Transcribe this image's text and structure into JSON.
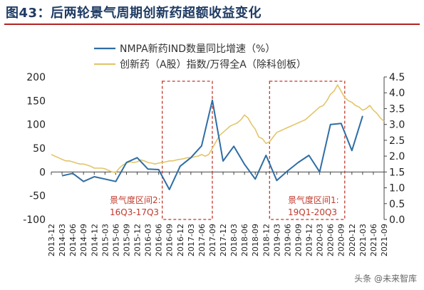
{
  "title": "图43：后两轮景气周期创新药超额收益变化",
  "watermark": "头条 @未来智库",
  "chart_data": {
    "type": "line",
    "legend_position": "top",
    "grid": false,
    "colors": {
      "nmpa": "#2e6da4",
      "index": "#e2c56a",
      "box": "#c0392b",
      "annotation": "#c0392b"
    },
    "x_tick_labels": [
      "2013-12",
      "2014-03",
      "2014-06",
      "2014-09",
      "2014-12",
      "2015-03",
      "2015-06",
      "2015-09",
      "2015-12",
      "2016-03",
      "2016-06",
      "2016-09",
      "2016-12",
      "2017-03",
      "2017-06",
      "2017-09",
      "2017-12",
      "2018-03",
      "2018-06",
      "2018-09",
      "2018-12",
      "2019-03",
      "2019-06",
      "2019-09",
      "2019-12",
      "2020-03",
      "2020-06",
      "2020-09",
      "2020-12",
      "2021-03",
      "2021-06",
      "2021-09"
    ],
    "y_left": {
      "min": -100,
      "max": 200,
      "ticks": [
        -100,
        -50,
        0,
        50,
        100,
        150,
        200
      ]
    },
    "y_right": {
      "min": 0.0,
      "max": 4.5,
      "ticks": [
        "0.0",
        "0.5",
        "1.0",
        "1.5",
        "2.0",
        "2.5",
        "3.0",
        "3.5",
        "4.0",
        "4.5"
      ]
    },
    "series": [
      {
        "name": "NMPA新药IND数量同比增速（%）",
        "axis": "left",
        "x": [
          "2014-03",
          "2014-06",
          "2014-09",
          "2014-12",
          "2015-03",
          "2015-06",
          "2015-09",
          "2015-12",
          "2016-03",
          "2016-06",
          "2016-09",
          "2016-12",
          "2017-03",
          "2017-06",
          "2017-09",
          "2017-12",
          "2018-03",
          "2018-06",
          "2018-09",
          "2018-12",
          "2019-03",
          "2019-06",
          "2019-09",
          "2019-12",
          "2020-03",
          "2020-06",
          "2020-09",
          "2020-12",
          "2021-03"
        ],
        "values": [
          -8,
          -3,
          -20,
          -10,
          -15,
          -20,
          20,
          30,
          6,
          5,
          -37,
          12,
          30,
          55,
          151,
          23,
          54,
          16,
          -15,
          35,
          -18,
          2,
          20,
          35,
          0,
          100,
          102,
          45,
          118
        ]
      },
      {
        "name": "创新药（A股）指数/万得全A（除科创板）",
        "axis": "right",
        "x": [
          "2013-12",
          "2014-01",
          "2014-02",
          "2014-03",
          "2014-04",
          "2014-05",
          "2014-06",
          "2014-07",
          "2014-08",
          "2014-09",
          "2014-10",
          "2014-11",
          "2014-12",
          "2015-01",
          "2015-02",
          "2015-03",
          "2015-04",
          "2015-05",
          "2015-06",
          "2015-07",
          "2015-08",
          "2015-09",
          "2015-10",
          "2015-11",
          "2015-12",
          "2016-01",
          "2016-02",
          "2016-03",
          "2016-04",
          "2016-05",
          "2016-06",
          "2016-07",
          "2016-08",
          "2016-09",
          "2016-10",
          "2016-11",
          "2016-12",
          "2017-01",
          "2017-02",
          "2017-03",
          "2017-04",
          "2017-05",
          "2017-06",
          "2017-07",
          "2017-08",
          "2017-09",
          "2017-10",
          "2017-11",
          "2017-12",
          "2018-01",
          "2018-02",
          "2018-03",
          "2018-04",
          "2018-05",
          "2018-06",
          "2018-07",
          "2018-08",
          "2018-09",
          "2018-10",
          "2018-11",
          "2018-12",
          "2019-01",
          "2019-02",
          "2019-03",
          "2019-04",
          "2019-05",
          "2019-06",
          "2019-07",
          "2019-08",
          "2019-09",
          "2019-10",
          "2019-11",
          "2019-12",
          "2020-01",
          "2020-02",
          "2020-03",
          "2020-04",
          "2020-05",
          "2020-06",
          "2020-07",
          "2020-08",
          "2020-09",
          "2020-10",
          "2020-11",
          "2020-12",
          "2021-01",
          "2021-02",
          "2021-03",
          "2021-04",
          "2021-05",
          "2021-06",
          "2021-07",
          "2021-08",
          "2021-09"
        ],
        "values": [
          2.05,
          2.0,
          1.95,
          1.9,
          1.85,
          1.85,
          1.82,
          1.78,
          1.75,
          1.75,
          1.72,
          1.68,
          1.62,
          1.62,
          1.62,
          1.6,
          1.55,
          1.5,
          1.48,
          1.62,
          1.72,
          1.78,
          1.82,
          1.8,
          1.82,
          1.88,
          1.85,
          1.8,
          1.78,
          1.75,
          1.78,
          1.8,
          1.82,
          1.85,
          1.85,
          1.88,
          1.9,
          1.92,
          1.95,
          1.95,
          1.98,
          2.0,
          2.05,
          2.0,
          2.05,
          2.25,
          2.45,
          2.65,
          2.75,
          2.85,
          2.95,
          3.0,
          3.05,
          3.15,
          3.3,
          3.2,
          3.0,
          2.85,
          2.6,
          2.55,
          2.4,
          2.45,
          2.6,
          2.75,
          2.8,
          2.85,
          2.9,
          2.95,
          3.0,
          3.05,
          3.1,
          3.15,
          3.25,
          3.35,
          3.45,
          3.55,
          3.6,
          3.75,
          3.95,
          4.05,
          4.25,
          4.05,
          3.85,
          3.75,
          3.7,
          3.6,
          3.55,
          3.45,
          3.5,
          3.6,
          3.45,
          3.35,
          3.2,
          3.1
        ]
      }
    ],
    "annotations": [
      {
        "label": "景气度区间2:",
        "range": "16Q3-17Q3",
        "x_start": "2016-07",
        "x_end": "2017-09"
      },
      {
        "label": "景气度区间1:",
        "range": "19Q1-20Q3",
        "x_start": "2019-01",
        "x_end": "2020-10"
      }
    ]
  }
}
